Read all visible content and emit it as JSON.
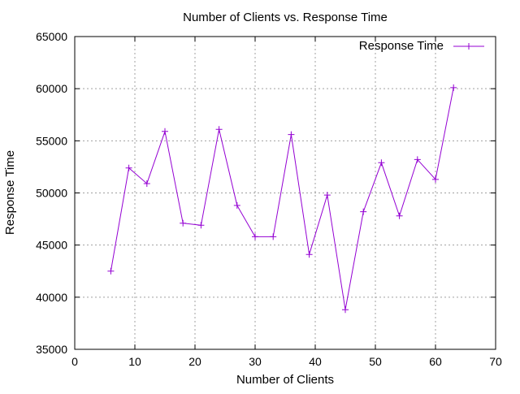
{
  "chart_data": {
    "type": "line",
    "title": "Number of Clients vs. Response Time",
    "xlabel": "Number of Clients",
    "ylabel": "Response Time",
    "xlim": [
      0,
      70
    ],
    "ylim": [
      35000,
      65000
    ],
    "xticks": [
      0,
      10,
      20,
      30,
      40,
      50,
      60,
      70
    ],
    "yticks": [
      35000,
      40000,
      45000,
      50000,
      55000,
      60000,
      65000
    ],
    "grid": true,
    "legend_position": "top-right",
    "series": [
      {
        "name": "Response Time",
        "color": "#9400d3",
        "marker": "plus",
        "x": [
          6,
          9,
          12,
          15,
          18,
          21,
          24,
          27,
          30,
          33,
          36,
          39,
          42,
          45,
          48,
          51,
          54,
          57,
          60,
          63
        ],
        "y": [
          42500,
          52400,
          50900,
          55900,
          47100,
          46900,
          56100,
          48800,
          45800,
          45800,
          55600,
          44100,
          49800,
          38800,
          48200,
          52900,
          47800,
          53200,
          51300,
          60100
        ]
      }
    ]
  }
}
